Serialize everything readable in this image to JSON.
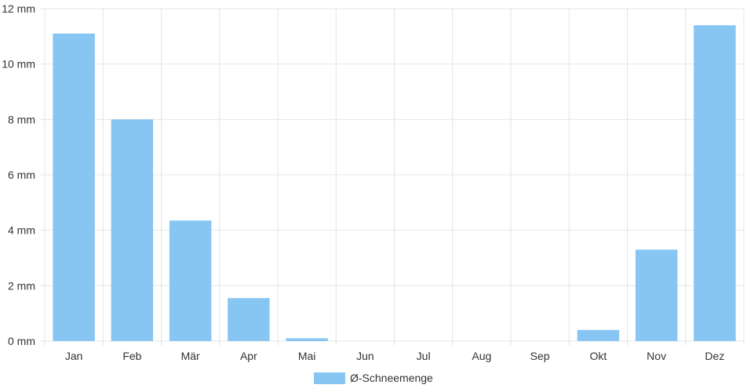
{
  "chart_data": {
    "type": "bar",
    "categories": [
      "Jan",
      "Feb",
      "Mär",
      "Apr",
      "Mai",
      "Jun",
      "Jul",
      "Aug",
      "Sep",
      "Okt",
      "Nov",
      "Dez"
    ],
    "series": [
      {
        "name": "Ø-Schneemenge",
        "color": "#87c6f2",
        "values": [
          11.1,
          8.0,
          4.35,
          1.55,
          0.1,
          0,
          0,
          0,
          0,
          0.4,
          3.3,
          11.4
        ]
      }
    ],
    "y_ticks": [
      "0 mm",
      "2 mm",
      "4 mm",
      "6 mm",
      "8 mm",
      "10 mm",
      "12 mm"
    ],
    "ylim": [
      0,
      12
    ],
    "grid": true,
    "legend_position": "bottom-center",
    "grid_color": "#e5e5e5"
  }
}
